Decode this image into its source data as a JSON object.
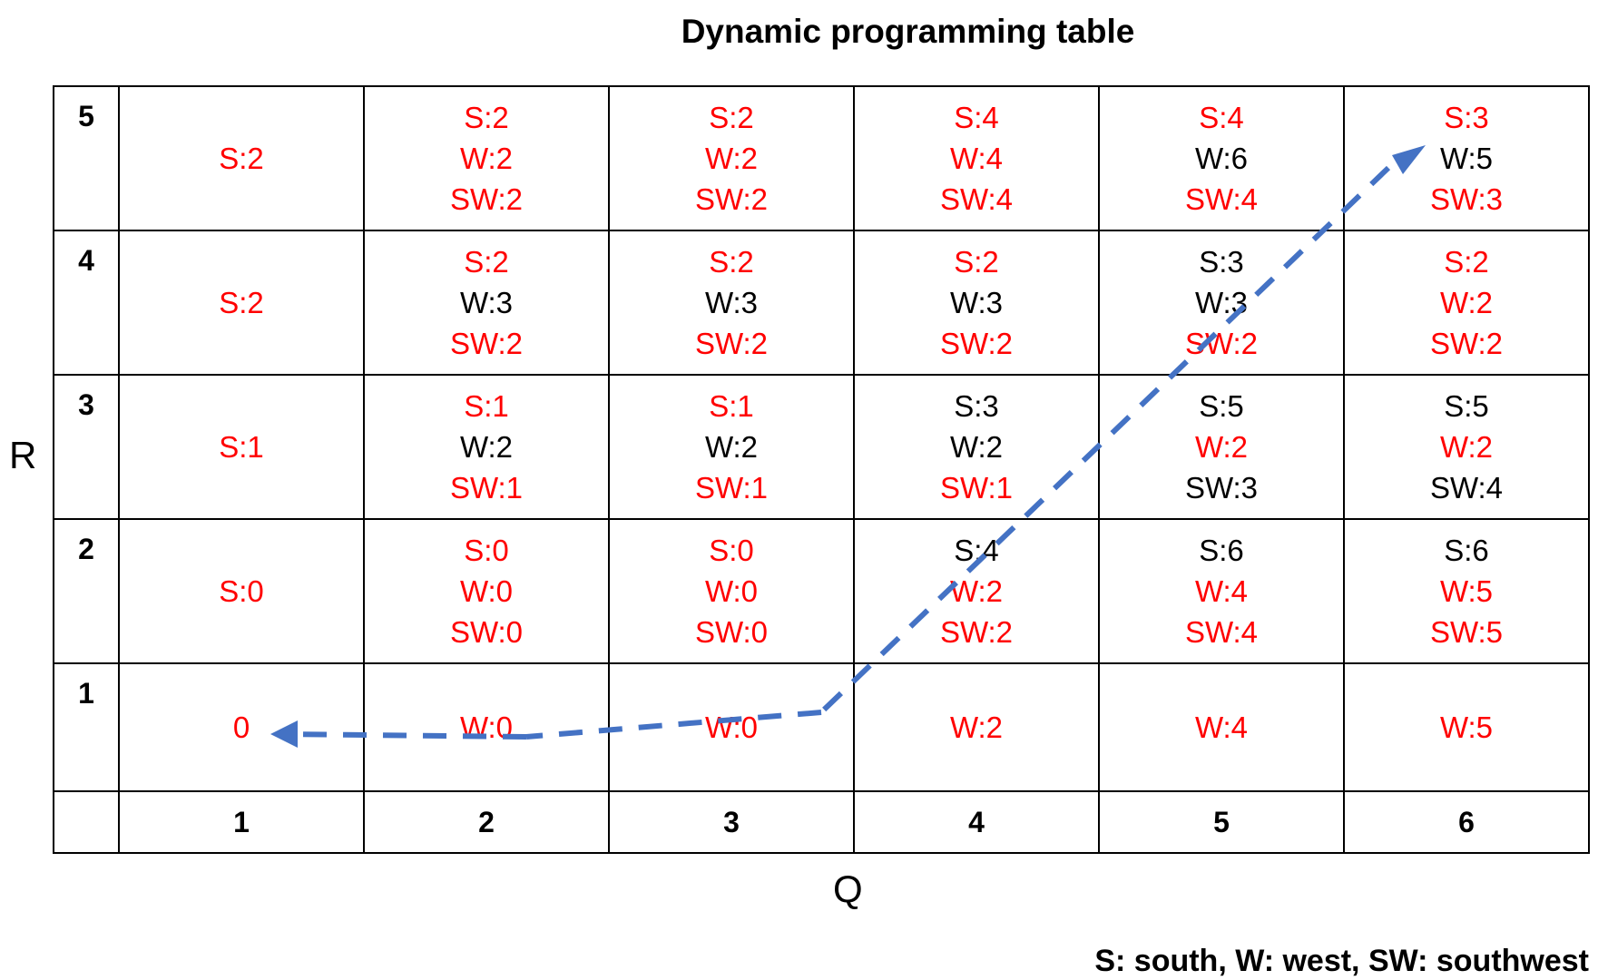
{
  "title": "Dynamic programming table",
  "y_axis_label": "R",
  "x_axis_label": "Q",
  "legend_note": "S: south, W: west, SW: southwest",
  "colors": {
    "optimal": "#ff0000",
    "normal": "#000000",
    "path": "#4472c4"
  },
  "col_headers": [
    "1",
    "2",
    "3",
    "4",
    "5",
    "6"
  ],
  "rows": [
    {
      "label": "5",
      "cells": [
        [
          {
            "t": "S:2",
            "hl": true
          }
        ],
        [
          {
            "t": "S:2",
            "hl": true
          },
          {
            "t": "W:2",
            "hl": true
          },
          {
            "t": "SW:2",
            "hl": true
          }
        ],
        [
          {
            "t": "S:2",
            "hl": true
          },
          {
            "t": "W:2",
            "hl": true
          },
          {
            "t": "SW:2",
            "hl": true
          }
        ],
        [
          {
            "t": "S:4",
            "hl": true
          },
          {
            "t": "W:4",
            "hl": true
          },
          {
            "t": "SW:4",
            "hl": true
          }
        ],
        [
          {
            "t": "S:4",
            "hl": true
          },
          {
            "t": "W:6",
            "hl": false
          },
          {
            "t": "SW:4",
            "hl": true
          }
        ],
        [
          {
            "t": "S:3",
            "hl": true
          },
          {
            "t": "W:5",
            "hl": false
          },
          {
            "t": "SW:3",
            "hl": true
          }
        ]
      ]
    },
    {
      "label": "4",
      "cells": [
        [
          {
            "t": "S:2",
            "hl": true
          }
        ],
        [
          {
            "t": "S:2",
            "hl": true
          },
          {
            "t": "W:3",
            "hl": false
          },
          {
            "t": "SW:2",
            "hl": true
          }
        ],
        [
          {
            "t": "S:2",
            "hl": true
          },
          {
            "t": "W:3",
            "hl": false
          },
          {
            "t": "SW:2",
            "hl": true
          }
        ],
        [
          {
            "t": "S:2",
            "hl": true
          },
          {
            "t": "W:3",
            "hl": false
          },
          {
            "t": "SW:2",
            "hl": true
          }
        ],
        [
          {
            "t": "S:3",
            "hl": false
          },
          {
            "t": "W:3",
            "hl": false
          },
          {
            "t": "SW:2",
            "hl": true
          }
        ],
        [
          {
            "t": "S:2",
            "hl": true
          },
          {
            "t": "W:2",
            "hl": true
          },
          {
            "t": "SW:2",
            "hl": true
          }
        ]
      ]
    },
    {
      "label": "3",
      "cells": [
        [
          {
            "t": "S:1",
            "hl": true
          }
        ],
        [
          {
            "t": "S:1",
            "hl": true
          },
          {
            "t": "W:2",
            "hl": false
          },
          {
            "t": "SW:1",
            "hl": true
          }
        ],
        [
          {
            "t": "S:1",
            "hl": true
          },
          {
            "t": "W:2",
            "hl": false
          },
          {
            "t": "SW:1",
            "hl": true
          }
        ],
        [
          {
            "t": "S:3",
            "hl": false
          },
          {
            "t": "W:2",
            "hl": false
          },
          {
            "t": "SW:1",
            "hl": true
          }
        ],
        [
          {
            "t": "S:5",
            "hl": false
          },
          {
            "t": "W:2",
            "hl": true
          },
          {
            "t": "SW:3",
            "hl": false
          }
        ],
        [
          {
            "t": "S:5",
            "hl": false
          },
          {
            "t": "W:2",
            "hl": true
          },
          {
            "t": "SW:4",
            "hl": false
          }
        ]
      ]
    },
    {
      "label": "2",
      "cells": [
        [
          {
            "t": "S:0",
            "hl": true
          }
        ],
        [
          {
            "t": "S:0",
            "hl": true
          },
          {
            "t": "W:0",
            "hl": true
          },
          {
            "t": "SW:0",
            "hl": true
          }
        ],
        [
          {
            "t": "S:0",
            "hl": true
          },
          {
            "t": "W:0",
            "hl": true
          },
          {
            "t": "SW:0",
            "hl": true
          }
        ],
        [
          {
            "t": "S:4",
            "hl": false
          },
          {
            "t": "W:2",
            "hl": true
          },
          {
            "t": "SW:2",
            "hl": true
          }
        ],
        [
          {
            "t": "S:6",
            "hl": false
          },
          {
            "t": "W:4",
            "hl": true
          },
          {
            "t": "SW:4",
            "hl": true
          }
        ],
        [
          {
            "t": "S:6",
            "hl": false
          },
          {
            "t": "W:5",
            "hl": true
          },
          {
            "t": "SW:5",
            "hl": true
          }
        ]
      ]
    },
    {
      "label": "1",
      "cells": [
        [
          {
            "t": "0",
            "hl": true
          }
        ],
        [
          {
            "t": "W:0",
            "hl": true
          }
        ],
        [
          {
            "t": "W:0",
            "hl": true
          }
        ],
        [
          {
            "t": "W:2",
            "hl": true
          }
        ],
        [
          {
            "t": "W:4",
            "hl": true
          }
        ],
        [
          {
            "t": "W:5",
            "hl": true
          }
        ]
      ]
    }
  ]
}
